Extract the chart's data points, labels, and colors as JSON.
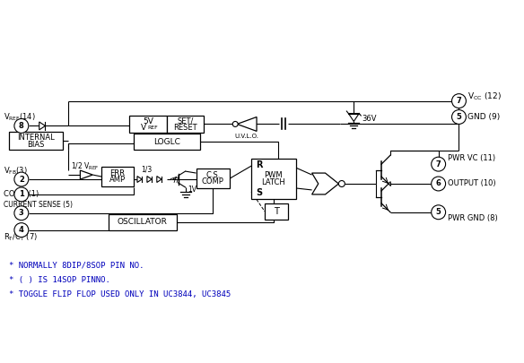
{
  "bg_color": "#ffffff",
  "lc": "#000000",
  "tc": "#000000",
  "footnote_color": "#0000bb",
  "footnotes": [
    "* NORMALLY 8DIP/8SOP PIN NO.",
    "* ( ) IS 14SOP PINNO.",
    "* TOGGLE FLIP FLOP USED ONLY IN UC3844, UC3845"
  ],
  "figsize": [
    5.84,
    4.05
  ],
  "dpi": 100
}
